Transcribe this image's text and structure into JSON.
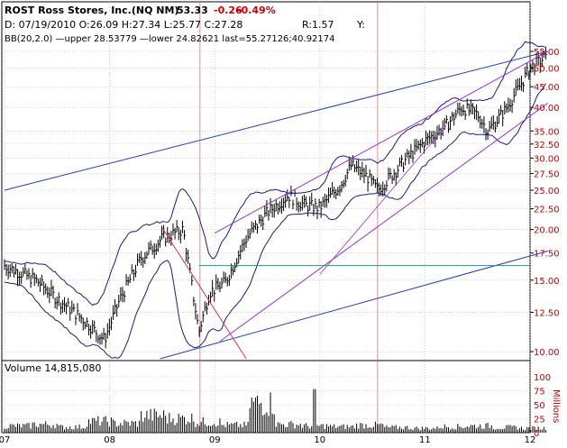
{
  "header": {
    "symbol": "ROST Ross Stores, Inc.(NQ NM)",
    "last": "53.33",
    "change": "-0.26",
    "pct_change": "-0.49%",
    "ohlc": "D: 07/19/2010 O:26.09 H:27.34 L:25.77 C:27.28",
    "r_value": "R:1.57",
    "y_label": "Y:",
    "bb": "BB(20,2.0) —upper 28.53779 —lower 24.82621 last=55.27126;40.92174"
  },
  "volume_label": "Volume 14,815,080",
  "colors": {
    "price": "#000000",
    "bollinger": "#1a1a8c",
    "blue_trend": "#1f3fc8",
    "purple_channel": "#9b30d0",
    "horizontal": "#1a9a8a",
    "red_line": "#e03050",
    "grid": "#b8b8b8",
    "axis_text": "#c00000"
  },
  "chart_data": [
    {
      "type": "line",
      "subtype": "ohlc",
      "title": "ROST Ross Stores, Inc.(NQ NM)",
      "y_scale": "log",
      "ylim": [
        9.6,
        57
      ],
      "y_ticks": [
        "55.00",
        "50.00",
        "45.00",
        "40.00",
        "35.00",
        "32.50",
        "30.00",
        "27.50",
        "25.00",
        "22.50",
        "20.00",
        "17.50",
        "15.00",
        "12.50",
        "10.00"
      ],
      "x_ticks": [
        "07",
        "08",
        "09",
        "10",
        "11",
        "12"
      ],
      "grid": true,
      "series": [
        {
          "name": "Price",
          "key_points": [
            [
              "07",
              16.3
            ],
            [
              "07.3",
              15.0
            ],
            [
              "07.5",
              13.5
            ],
            [
              "07.75",
              12.0
            ],
            [
              "07.95",
              10.7
            ],
            [
              "08.1",
              13.5
            ],
            [
              "08.3",
              17.0
            ],
            [
              "08.5",
              19.0
            ],
            [
              "08.7",
              20.0
            ],
            [
              "08.85",
              11.2
            ],
            [
              "08.95",
              14.0
            ],
            [
              "09.1",
              14.8
            ],
            [
              "09.3",
              19.0
            ],
            [
              "09.5",
              22.0
            ],
            [
              "09.7",
              24.3
            ],
            [
              "09.85",
              23.0
            ],
            [
              "10.0",
              22.6
            ],
            [
              "10.2",
              25.8
            ],
            [
              "10.3",
              28.8
            ],
            [
              "10.45",
              27.0
            ],
            [
              "10.55",
              25.0
            ],
            [
              "10.7",
              27.5
            ],
            [
              "10.85",
              30.3
            ],
            [
              "11.0",
              33.0
            ],
            [
              "11.2",
              36.0
            ],
            [
              "11.35",
              40.0
            ],
            [
              "11.5",
              38.5
            ],
            [
              "11.6",
              35.0
            ],
            [
              "11.75",
              39.0
            ],
            [
              "11.9",
              45.0
            ],
            [
              "12.0",
              50.0
            ],
            [
              "12.15",
              53.3
            ]
          ]
        },
        {
          "name": "BB upper",
          "key_points": []
        },
        {
          "name": "BB lower",
          "key_points": []
        }
      ],
      "annotations": [
        "blue trend lines",
        "purple parallel channel",
        "horizontal line ~16.3",
        "red descending line"
      ]
    },
    {
      "type": "bar",
      "title": "Volume 14,815,080",
      "ylabel": "Millions",
      "ylim": [
        0,
        100
      ],
      "y_ticks": [
        "0",
        "25",
        "50",
        "75",
        "100"
      ],
      "values_millions_sample": [
        18,
        22,
        15,
        30,
        25,
        45,
        38,
        28,
        20,
        78,
        22,
        18,
        16,
        20,
        14,
        12,
        16,
        18,
        14,
        12
      ]
    }
  ]
}
